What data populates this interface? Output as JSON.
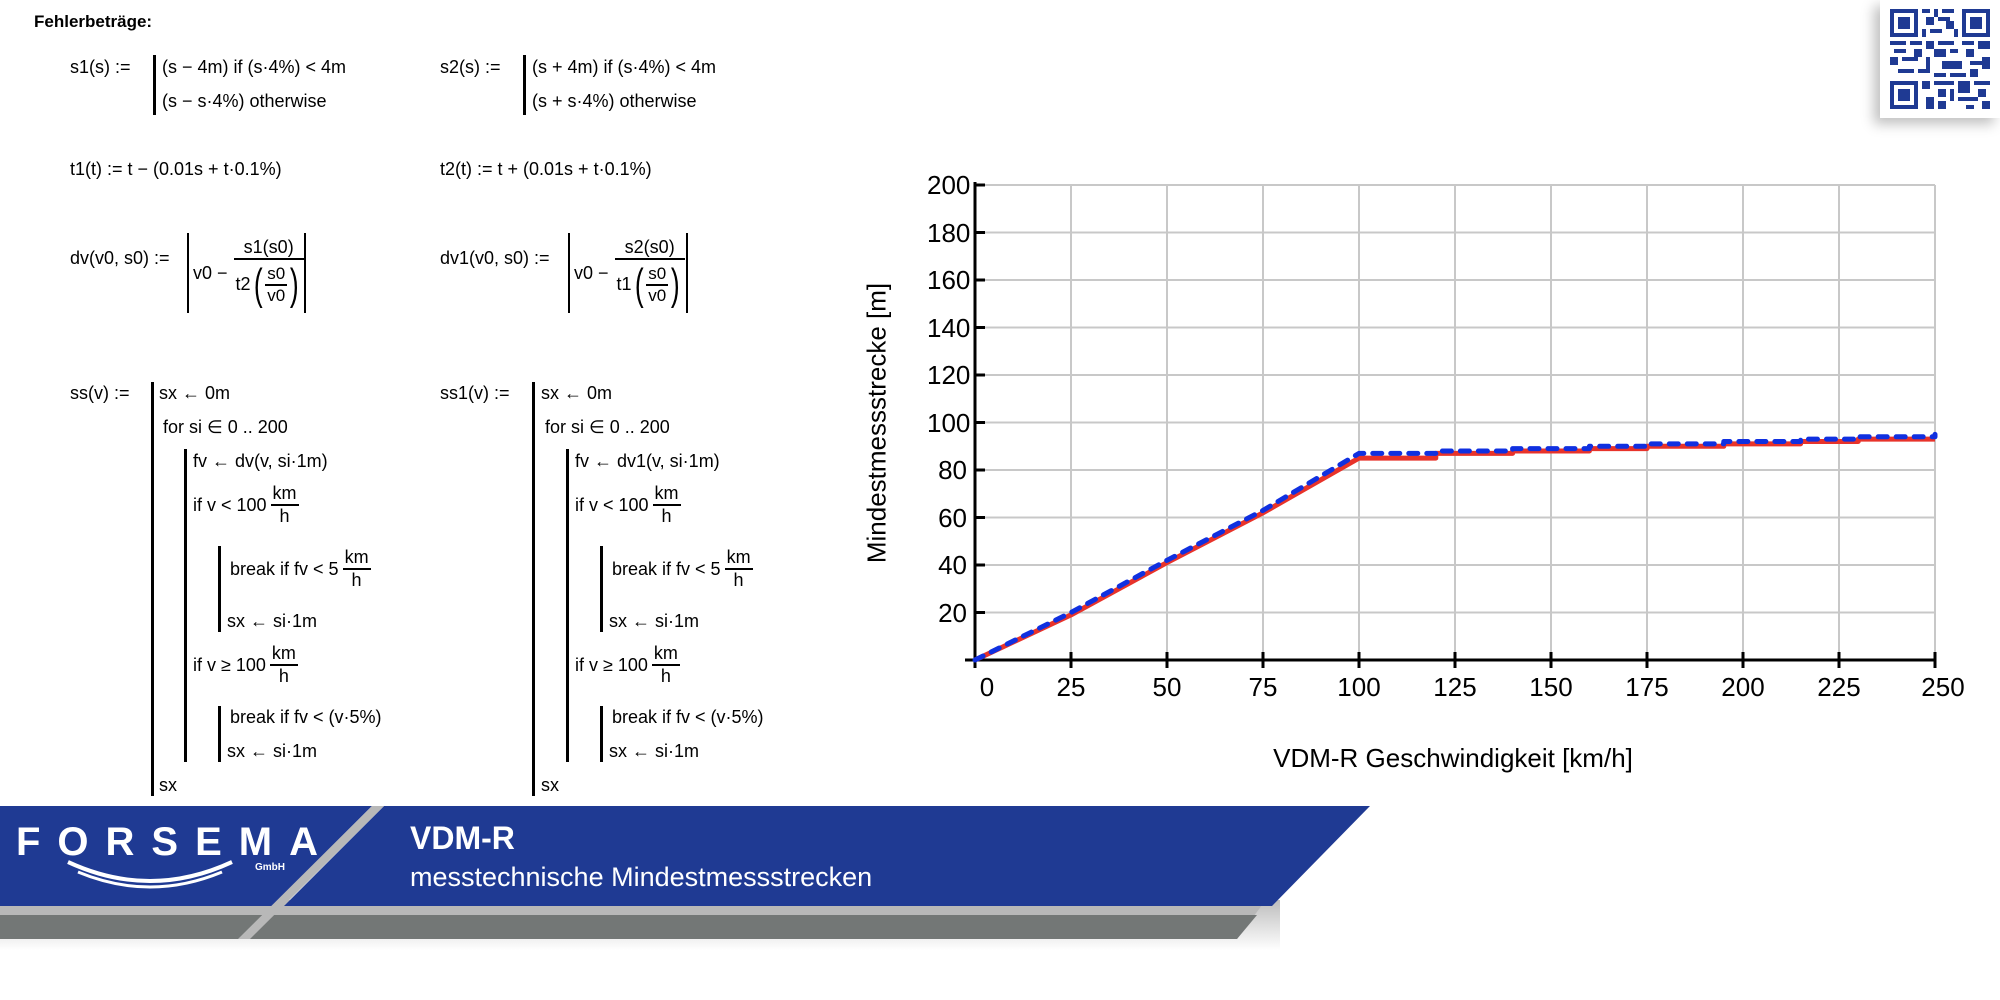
{
  "heading": "Fehlerbeträge:",
  "formulas": {
    "s1": {
      "lhs": "s1(s) :=",
      "case1": "(s − 4m)   if   (s·4%) < 4m",
      "case2": "(s − s·4%)   otherwise"
    },
    "s2": {
      "lhs": "s2(s) :=",
      "case1": "(s + 4m)   if   (s·4%) < 4m",
      "case2": "(s + s·4%)   otherwise"
    },
    "t1": "t1(t) := t − (0.01s + t·0.1%)",
    "t2": "t2(t) := t + (0.01s + t·0.1%)",
    "dv": {
      "lhs": "dv(v0, s0) :=",
      "v0": "v0 −",
      "num": "s1(s0)",
      "fn": "t2",
      "inner_num": "s0",
      "inner_den": "v0"
    },
    "dv1": {
      "lhs": "dv1(v0, s0) :=",
      "v0": "v0 −",
      "num": "s2(s0)",
      "fn": "t1",
      "inner_num": "s0",
      "inner_den": "v0"
    },
    "ss": {
      "lhs": "ss(v) :=",
      "init": "sx ← 0m",
      "loop": "for   si ∈ 0 .. 200",
      "assign": "fv ← dv(v, si·1m)",
      "if1": "if   v < 100",
      "unit_num": "km",
      "unit_den": "h",
      "break1": "break   if   fv < 5",
      "sx1": "sx ← si·1m",
      "if2": "if   v ≥ 100",
      "break2": "break   if   fv < (v·5%)",
      "sx2": "sx ← si·1m",
      "ret": "sx"
    },
    "ss1": {
      "lhs": "ss1(v) :=",
      "init": "sx ← 0m",
      "loop": "for   si ∈ 0 .. 200",
      "assign": "fv ← dv1(v, si·1m)",
      "if1": "if   v < 100",
      "unit_num": "km",
      "unit_den": "h",
      "break1": "break   if   fv < 5",
      "sx1": "sx ← si·1m",
      "if2": "if   v ≥ 100",
      "break2": "break   if   fv < (v·5%)",
      "sx2": "sx ← si·1m",
      "ret": "sx"
    }
  },
  "footer": {
    "brand": "FORSEMA",
    "brand_suffix": "GmbH",
    "title": "VDM-R",
    "subtitle": "messtechnische Mindestmessstrecken",
    "colors": {
      "blue": "#1f3a93",
      "grey": "#737776",
      "light_grey": "#b8b8b8"
    }
  },
  "qr": {
    "icon": "qr-code-icon",
    "color": "#1f3a93"
  },
  "chart_data": {
    "type": "line",
    "title": "",
    "xlabel": "VDM-R Geschwindigkeit [km/h]",
    "ylabel": "Mindestmessstrecke [m]",
    "xlim": [
      0,
      250
    ],
    "ylim": [
      0,
      200
    ],
    "x_ticks": [
      "0",
      "25",
      "50",
      "75",
      "100",
      "125",
      "150",
      "175",
      "200",
      "225",
      "250"
    ],
    "y_ticks": [
      "20",
      "40",
      "60",
      "80",
      "100",
      "120",
      "140",
      "160",
      "180",
      "200"
    ],
    "grid": true,
    "legend": "none",
    "x": [
      0,
      25,
      50,
      75,
      100,
      120,
      140,
      160,
      175,
      195,
      215,
      230,
      250
    ],
    "series": [
      {
        "name": "ss(v)",
        "style": "solid",
        "color": "#e8332a",
        "values": [
          0,
          19,
          41,
          62,
          85,
          87,
          88,
          89,
          90,
          91,
          92,
          93,
          93
        ]
      },
      {
        "name": "ss1(v)",
        "style": "dotted",
        "color": "#1030e0",
        "values": [
          0,
          20,
          42,
          63,
          87,
          88,
          89,
          90,
          91,
          92,
          93,
          94,
          95
        ]
      }
    ]
  }
}
